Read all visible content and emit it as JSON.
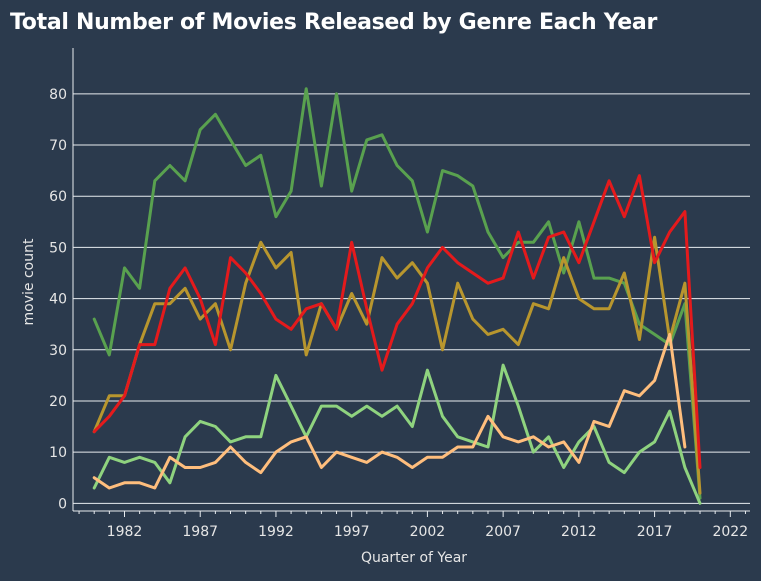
{
  "chart_data": {
    "type": "line",
    "title": "Total Number of Movies Released by Genre Each Year",
    "xlabel": "Quarter of Year",
    "ylabel": "movie count",
    "xlim": [
      1978.6,
      2023.3
    ],
    "ylim": [
      -1.5,
      87
    ],
    "xticks": [
      1982,
      1987,
      1992,
      1997,
      2002,
      2007,
      2012,
      2017,
      2022
    ],
    "yticks": [
      0,
      10,
      20,
      30,
      40,
      50,
      60,
      70,
      80
    ],
    "grid": true,
    "legend": "none",
    "x": [
      1980,
      1981,
      1982,
      1983,
      1984,
      1985,
      1986,
      1987,
      1988,
      1989,
      1990,
      1991,
      1992,
      1993,
      1994,
      1995,
      1996,
      1997,
      1998,
      1999,
      2000,
      2001,
      2002,
      2003,
      2004,
      2005,
      2006,
      2007,
      2008,
      2009,
      2010,
      2011,
      2012,
      2013,
      2014,
      2015,
      2016,
      2017,
      2018,
      2019,
      2020
    ],
    "series": [
      {
        "color": "#59a14f",
        "values": [
          36,
          29,
          46,
          42,
          63,
          66,
          63,
          73,
          76,
          71,
          66,
          68,
          56,
          61,
          81,
          62,
          80,
          61,
          71,
          72,
          66,
          63,
          53,
          65,
          64,
          62,
          53,
          48,
          51,
          51,
          55,
          45,
          55,
          44,
          44,
          43,
          35,
          33,
          31,
          39,
          1
        ]
      },
      {
        "color": "#b8962e",
        "values": [
          14,
          21,
          21,
          31,
          39,
          39,
          42,
          36,
          39,
          30,
          43,
          51,
          46,
          49,
          29,
          39,
          34,
          41,
          35,
          48,
          44,
          47,
          43,
          30,
          43,
          36,
          33,
          34,
          31,
          39,
          38,
          48,
          40,
          38,
          38,
          45,
          32,
          52,
          32,
          43,
          2
        ]
      },
      {
        "color": "#e41a1c",
        "values": [
          14,
          17,
          21,
          31,
          31,
          42,
          46,
          40,
          31,
          48,
          45,
          41,
          36,
          34,
          38,
          39,
          34,
          51,
          38,
          26,
          35,
          39,
          46,
          50,
          47,
          45,
          43,
          44,
          53,
          44,
          52,
          53,
          47,
          55,
          63,
          56,
          64,
          47,
          53,
          57,
          7
        ]
      },
      {
        "color": "#8fd37f",
        "values": [
          3,
          9,
          8,
          9,
          8,
          4,
          13,
          16,
          15,
          12,
          13,
          13,
          25,
          19,
          13,
          19,
          19,
          17,
          19,
          17,
          19,
          15,
          26,
          17,
          13,
          12,
          11,
          27,
          19,
          10,
          13,
          7,
          12,
          15,
          8,
          6,
          10,
          12,
          18,
          7,
          0
        ]
      },
      {
        "color": "#ffbe7d",
        "values": [
          5,
          3,
          4,
          4,
          3,
          9,
          7,
          7,
          8,
          11,
          8,
          6,
          10,
          12,
          13,
          7,
          10,
          9,
          8,
          10,
          9,
          7,
          9,
          9,
          11,
          11,
          17,
          13,
          12,
          13,
          11,
          12,
          8,
          16,
          15,
          22,
          21,
          24,
          33,
          11,
          null
        ]
      }
    ]
  }
}
